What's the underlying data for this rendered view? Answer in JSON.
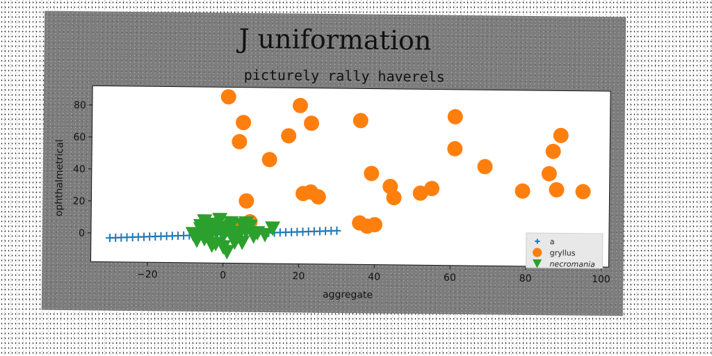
{
  "chart_data": {
    "type": "scatter",
    "title": "J uniformation",
    "subtitle": "picturely rally haverels",
    "xlabel": "aggregate",
    "ylabel": "ophthalmetrical",
    "xlim": [
      -35,
      102
    ],
    "ylim": [
      -18,
      92
    ],
    "xticks": [
      -20,
      0,
      20,
      40,
      60,
      80,
      100
    ],
    "yticks": [
      0,
      20,
      40,
      60,
      80
    ],
    "grid": false,
    "legend_position": "bottom-right",
    "series": [
      {
        "name": "a",
        "marker": "plus",
        "color": "#1f77b4",
        "x": [
          -30,
          -28.5,
          -27,
          -25.5,
          -24,
          -22.5,
          -21,
          -19.5,
          -18,
          -16.5,
          -15,
          -13.5,
          -12,
          -10.5,
          -9,
          -7.5,
          -6,
          -4.5,
          -3,
          -1.5,
          0,
          1.5,
          3,
          4.5,
          6,
          7.5,
          9,
          10.5,
          12,
          13.5,
          15,
          16.5,
          18,
          19.5,
          21,
          22.5,
          24,
          25.5,
          27,
          28.5,
          30
        ],
        "y": [
          -3,
          -2.85,
          -2.7,
          -2.55,
          -2.4,
          -2.25,
          -2.1,
          -1.95,
          -1.8,
          -1.65,
          -1.5,
          -1.35,
          -1.2,
          -1.05,
          -0.9,
          -0.75,
          -0.6,
          -0.45,
          -0.3,
          -0.15,
          0,
          0.15,
          0.3,
          0.45,
          0.6,
          0.75,
          0.9,
          1.05,
          1.2,
          1.35,
          1.5,
          1.65,
          1.8,
          1.95,
          2.1,
          2.25,
          2.4,
          2.55,
          2.7,
          2.85,
          3
        ]
      },
      {
        "name": "gryllus",
        "marker": "circle",
        "color": "#ff7f0e",
        "x": [
          1,
          4,
          5,
          6,
          7,
          12,
          17,
          20,
          21,
          23,
          23,
          25,
          36,
          36,
          38,
          39,
          40,
          44,
          45,
          52,
          55,
          61,
          61,
          69,
          79,
          86,
          87,
          88,
          89,
          95,
          3
        ],
        "y": [
          86,
          58,
          70,
          21,
          8,
          47,
          62,
          81,
          26,
          70,
          27,
          24,
          72,
          8,
          6,
          39,
          7,
          31,
          24,
          27,
          30,
          75,
          55,
          44,
          29,
          40,
          54,
          30,
          64,
          29,
          5
        ]
      },
      {
        "name": "necromania",
        "marker": "triangle-down",
        "color": "#2ca02c",
        "x": [
          -8,
          -6,
          -5,
          -4,
          -3,
          -2,
          -1,
          0,
          1,
          2,
          3,
          4,
          5,
          6,
          7,
          9,
          11,
          13,
          -7,
          -5,
          -3,
          -2,
          0,
          1,
          2,
          3,
          4,
          5,
          -6,
          -4,
          0,
          2,
          6,
          8,
          -1,
          1,
          3,
          -3
        ],
        "y": [
          0,
          5,
          -3,
          2,
          6,
          -6,
          4,
          -1,
          3,
          7,
          -2,
          1,
          -5,
          2,
          5,
          1,
          0,
          4,
          -4,
          8,
          -7,
          2,
          1,
          -11,
          5,
          -3,
          -1,
          6,
          3,
          -2,
          -8,
          0,
          7,
          -1,
          9,
          4,
          -5,
          1
        ]
      }
    ]
  }
}
